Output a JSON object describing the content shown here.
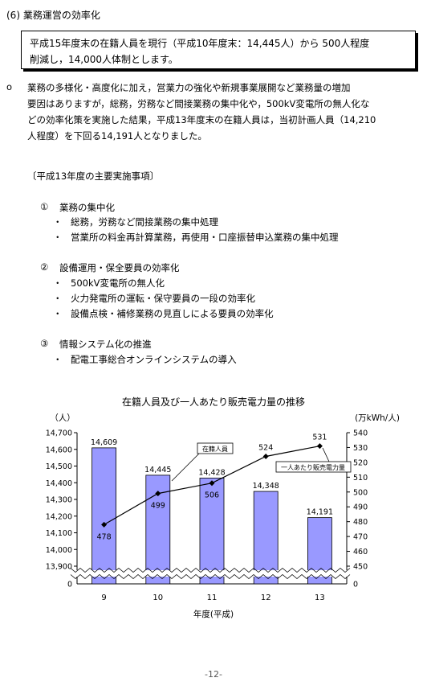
{
  "section_heading": "(6) 業務運営の効率化",
  "target_box": {
    "line1": "平成15年度末の在籍人員を現行（平成10年度末：14,445人）から 500人程度",
    "line2": "削減し，14,000人体制とします。"
  },
  "paragraph": {
    "bullet": "o",
    "lines": [
      "業務の多様化・高度化に加え，営業力の強化や新規事業展開など業務量の増加",
      "要因はありますが，総務，労務など間接業務の集中化や，500kV変電所の無人化な",
      "どの効率化策を実施した結果，平成13年度末の在籍人員は，当初計画人員（14,210",
      "人程度）を下回る14,191人となりました。"
    ]
  },
  "implementation_heading": "〔平成13年度の主要実施事項〕",
  "items": [
    {
      "number": "①",
      "title": "業務の集中化",
      "subs": [
        "総務，労務など間接業務の集中処理",
        "営業所の料金再計算業務，再使用・口座振替申込業務の集中処理"
      ]
    },
    {
      "number": "②",
      "title": "設備運用・保全要員の効率化",
      "subs": [
        "500kV変電所の無人化",
        "火力発電所の運転・保守要員の一段の効率化",
        "設備点検・補修業務の見直しによる要員の効率化"
      ]
    },
    {
      "number": "③",
      "title": "情報システム化の推進",
      "subs": [
        "配電工事総合オンラインシステムの導入"
      ]
    }
  ],
  "sub_bullet": "・",
  "chart_data": {
    "type": "bar",
    "title": "在籍人員及び一人あたり販売電力量の推移",
    "categories": [
      "9",
      "10",
      "11",
      "12",
      "13"
    ],
    "xlabel": "年度(平成)",
    "left_axis_unit": "（人）",
    "right_axis_unit": "(万kWh/人)",
    "series": [
      {
        "name": "在籍人員",
        "type": "bar",
        "values": [
          14609,
          14445,
          14428,
          14348,
          14191
        ],
        "labels": [
          "14,609",
          "14,445",
          "14,428",
          "14,348",
          "14,191"
        ],
        "color": "#9999ff"
      },
      {
        "name": "一人あたり販売電力量",
        "type": "line",
        "values": [
          478,
          499,
          506,
          524,
          531
        ],
        "labels": [
          "478",
          "499",
          "506",
          "524",
          "531"
        ],
        "color": "#000000"
      }
    ],
    "left_ticks": [
      "14,700",
      "14,600",
      "14,500",
      "14,400",
      "14,300",
      "14,200",
      "14,100",
      "14,000",
      "13,900",
      "0"
    ],
    "left_tick_values": [
      14700,
      14600,
      14500,
      14400,
      14300,
      14200,
      14100,
      14000,
      13900
    ],
    "right_ticks": [
      "540",
      "530",
      "520",
      "510",
      "500",
      "490",
      "480",
      "470",
      "460",
      "450",
      "0"
    ],
    "right_tick_values": [
      540,
      530,
      520,
      510,
      500,
      490,
      480,
      470,
      460,
      450
    ],
    "ylim_left": [
      13900,
      14700
    ],
    "ylim_right": [
      450,
      540
    ],
    "axis_break": true
  },
  "page_number": "-12-"
}
